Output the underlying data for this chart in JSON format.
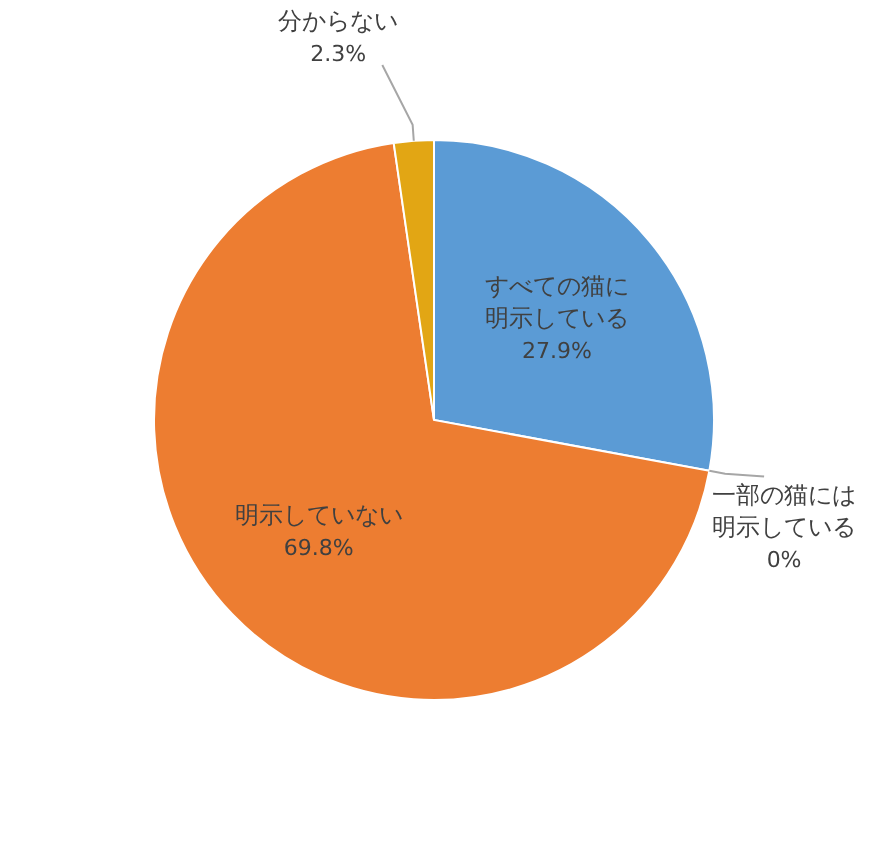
{
  "chart_data": {
    "type": "pie",
    "categories": [
      "すべての猫に明示している",
      "一部の猫には明示している",
      "明示していない",
      "分からない"
    ],
    "values": [
      27.9,
      0,
      69.8,
      2.3
    ],
    "colors": [
      "#5b9bd5",
      "#a5a5a5",
      "#ed7d31",
      "#e2a614"
    ],
    "value_labels": [
      "27.9%",
      "0%",
      "69.8%",
      "2.3%"
    ]
  }
}
